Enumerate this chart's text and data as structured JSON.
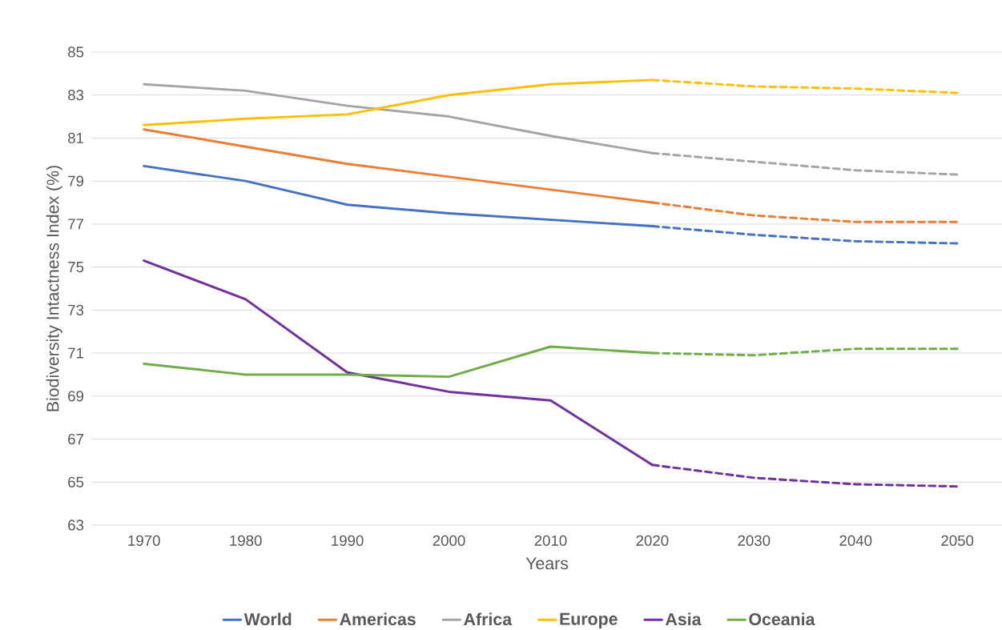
{
  "chart_data": {
    "type": "line",
    "xlabel": "Years",
    "ylabel": "Biodiversity Intactness Index (%)",
    "categories": [
      "1970",
      "1980",
      "1990",
      "2000",
      "2010",
      "2020",
      "2030",
      "2040",
      "2050"
    ],
    "ylim": [
      63,
      85
    ],
    "yticks": [
      63,
      65,
      67,
      69,
      71,
      73,
      75,
      77,
      79,
      81,
      83,
      85
    ],
    "grid": "y",
    "legend": "bottom",
    "series": [
      {
        "name": "World",
        "color": "#4472c4",
        "values": [
          79.7,
          79.0,
          77.9,
          77.5,
          77.2,
          76.9,
          null,
          null,
          null
        ]
      },
      {
        "name": "Americas",
        "color": "#ed7d31",
        "values": [
          81.4,
          80.6,
          79.8,
          79.2,
          78.6,
          78.0,
          null,
          null,
          null
        ]
      },
      {
        "name": "Africa",
        "color": "#a5a5a5",
        "values": [
          83.5,
          83.2,
          82.5,
          82.0,
          81.1,
          80.3,
          null,
          null,
          null
        ]
      },
      {
        "name": "Europe",
        "color": "#ffc000",
        "values": [
          81.6,
          81.9,
          82.1,
          83.0,
          83.5,
          83.7,
          null,
          null,
          null
        ]
      },
      {
        "name": "Asia",
        "color": "#7030a0",
        "values": [
          75.3,
          73.5,
          70.1,
          69.2,
          68.8,
          65.8,
          null,
          null,
          null
        ]
      },
      {
        "name": "Oceania",
        "color": "#70ad47",
        "values": [
          70.5,
          70.0,
          70.0,
          69.9,
          71.3,
          71.0,
          null,
          null,
          null
        ]
      },
      {
        "color": "#4472c4",
        "line_style": "dashed",
        "values": [
          null,
          null,
          null,
          null,
          null,
          76.9,
          76.5,
          76.2,
          76.1
        ]
      },
      {
        "color": "#ed7d31",
        "line_style": "dashed",
        "values": [
          null,
          null,
          null,
          null,
          null,
          78.0,
          77.4,
          77.1,
          77.1
        ]
      },
      {
        "color": "#a5a5a5",
        "line_style": "dashed",
        "values": [
          null,
          null,
          null,
          null,
          null,
          80.3,
          79.9,
          79.5,
          79.3
        ]
      },
      {
        "color": "#ffc000",
        "line_style": "dashed",
        "values": [
          null,
          null,
          null,
          null,
          null,
          83.7,
          83.4,
          83.3,
          83.1
        ]
      },
      {
        "color": "#7030a0",
        "line_style": "dashed",
        "values": [
          null,
          null,
          null,
          null,
          null,
          65.8,
          65.2,
          64.9,
          64.8
        ]
      },
      {
        "color": "#70ad47",
        "line_style": "dashed",
        "values": [
          null,
          null,
          null,
          null,
          null,
          71.0,
          70.9,
          71.2,
          71.2
        ]
      }
    ]
  }
}
